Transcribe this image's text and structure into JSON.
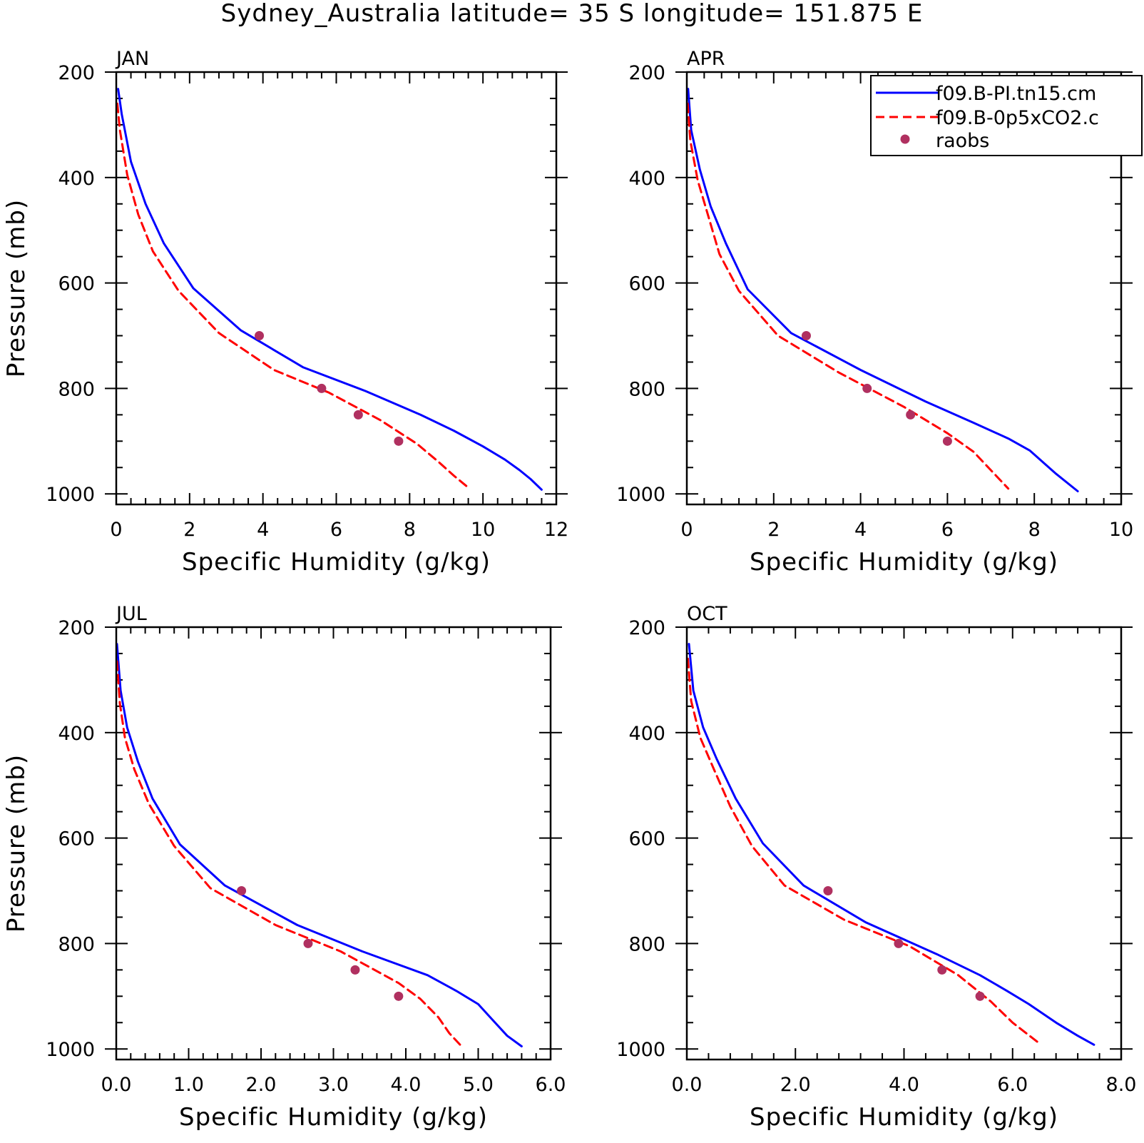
{
  "title": "Sydney_Australia  latitude= 35 S longitude= 151.875 E",
  "legend": {
    "placement": "top-right of APR panel",
    "entries": [
      {
        "label": "f09.B-PI.tn15.cm",
        "style": "solid",
        "color": "#0000ff"
      },
      {
        "label": "f09.B-0p5xCO2.c",
        "style": "dashed",
        "color": "#ff0000"
      },
      {
        "label": "raobs",
        "style": "marker",
        "color": "#b03060"
      }
    ]
  },
  "colors": {
    "model_pi": "#0000ff",
    "model_co2": "#ff0000",
    "raobs": "#b03060"
  },
  "chart_data": [
    {
      "type": "line",
      "panel": "JAN",
      "xlabel": "Specific Humidity (g/kg)",
      "ylabel": "Pressure (mb)",
      "xlim": [
        0,
        12
      ],
      "ylim": [
        200,
        1020
      ],
      "y_reversed": true,
      "xticks": [
        0,
        2,
        4,
        6,
        8,
        10,
        12
      ],
      "xtick_labels": [
        "0",
        "2",
        "4",
        "6",
        "8",
        "10",
        "12"
      ],
      "yticks": [
        200,
        400,
        600,
        800,
        1000
      ],
      "ytick_labels": [
        "200",
        "400",
        "600",
        "800",
        "1000"
      ],
      "series": [
        {
          "name": "f09.B-PI.tn15.cm",
          "style": "solid",
          "x": [
            0.05,
            0.15,
            0.4,
            0.8,
            1.3,
            2.1,
            3.4,
            5.1,
            6.8,
            8.3,
            9.2,
            10.0,
            10.6,
            11.0,
            11.3,
            11.6
          ],
          "y": [
            232,
            280,
            370,
            450,
            525,
            610,
            690,
            760,
            805,
            850,
            880,
            910,
            935,
            955,
            972,
            992
          ]
        },
        {
          "name": "f09.B-0p5xCO2.c",
          "style": "dashed",
          "x": [
            0.03,
            0.1,
            0.3,
            0.6,
            1.0,
            1.7,
            2.8,
            4.3,
            5.8,
            7.2,
            8.2,
            8.8,
            9.2,
            9.6
          ],
          "y": [
            260,
            310,
            395,
            470,
            540,
            615,
            695,
            765,
            808,
            860,
            905,
            940,
            965,
            988
          ]
        },
        {
          "name": "raobs",
          "style": "marker",
          "x": [
            3.9,
            5.6,
            6.6,
            7.7
          ],
          "y": [
            700,
            800,
            850,
            900
          ]
        }
      ]
    },
    {
      "type": "line",
      "panel": "APR",
      "xlabel": "Specific Humidity (g/kg)",
      "ylabel": "",
      "xlim": [
        0,
        10
      ],
      "ylim": [
        200,
        1020
      ],
      "y_reversed": true,
      "xticks": [
        0,
        2,
        4,
        6,
        8,
        10
      ],
      "xtick_labels": [
        "0",
        "2",
        "4",
        "6",
        "8",
        "10"
      ],
      "yticks": [
        200,
        400,
        600,
        800,
        1000
      ],
      "ytick_labels": [
        "200",
        "400",
        "600",
        "800",
        "1000"
      ],
      "series": [
        {
          "name": "f09.B-PI.tn15.cm",
          "style": "solid",
          "x": [
            0.03,
            0.1,
            0.3,
            0.55,
            0.9,
            1.4,
            2.4,
            4.0,
            5.5,
            6.6,
            7.4,
            7.9,
            8.2,
            8.5,
            9.0
          ],
          "y": [
            232,
            310,
            385,
            455,
            525,
            612,
            695,
            765,
            825,
            865,
            895,
            918,
            940,
            962,
            995
          ]
        },
        {
          "name": "f09.B-0p5xCO2.c",
          "style": "dashed",
          "x": [
            0.02,
            0.08,
            0.25,
            0.5,
            0.75,
            1.2,
            2.1,
            3.5,
            5.0,
            6.0,
            6.6,
            7.0,
            7.4
          ],
          "y": [
            260,
            330,
            405,
            475,
            545,
            615,
            700,
            770,
            835,
            885,
            920,
            955,
            990
          ]
        },
        {
          "name": "raobs",
          "style": "marker",
          "x": [
            2.75,
            4.15,
            5.15,
            6.0
          ],
          "y": [
            700,
            800,
            850,
            900
          ]
        }
      ]
    },
    {
      "type": "line",
      "panel": "JUL",
      "xlabel": "Specific Humidity (g/kg)",
      "ylabel": "Pressure (mb)",
      "xlim": [
        0,
        6
      ],
      "ylim": [
        200,
        1020
      ],
      "y_reversed": true,
      "xticks": [
        0,
        1,
        2,
        3,
        4,
        5,
        6
      ],
      "xtick_labels": [
        "0.0",
        "1.0",
        "2.0",
        "3.0",
        "4.0",
        "5.0",
        "6.0"
      ],
      "yticks": [
        200,
        400,
        600,
        800,
        1000
      ],
      "ytick_labels": [
        "200",
        "400",
        "600",
        "800",
        "1000"
      ],
      "series": [
        {
          "name": "f09.B-PI.tn15.cm",
          "style": "solid",
          "x": [
            0.01,
            0.06,
            0.15,
            0.3,
            0.5,
            0.88,
            1.5,
            2.5,
            3.4,
            4.3,
            4.7,
            5.0,
            5.2,
            5.4,
            5.6
          ],
          "y": [
            232,
            320,
            390,
            455,
            525,
            612,
            690,
            765,
            815,
            860,
            890,
            915,
            945,
            975,
            995
          ]
        },
        {
          "name": "f09.B-0p5xCO2.c",
          "style": "dashed",
          "x": [
            0.01,
            0.05,
            0.12,
            0.25,
            0.45,
            0.8,
            1.3,
            2.2,
            3.1,
            3.9,
            4.2,
            4.45,
            4.6,
            4.75
          ],
          "y": [
            265,
            345,
            410,
            470,
            535,
            615,
            695,
            765,
            815,
            875,
            905,
            940,
            970,
            992
          ]
        },
        {
          "name": "raobs",
          "style": "marker",
          "x": [
            1.73,
            2.65,
            3.3,
            3.9
          ],
          "y": [
            700,
            800,
            850,
            900
          ]
        }
      ]
    },
    {
      "type": "line",
      "panel": "OCT",
      "xlabel": "Specific Humidity (g/kg)",
      "ylabel": "",
      "xlim": [
        0,
        8
      ],
      "ylim": [
        200,
        1020
      ],
      "y_reversed": true,
      "xticks": [
        0,
        2,
        4,
        6,
        8
      ],
      "xtick_labels": [
        "0.0",
        "2.0",
        "4.0",
        "6.0",
        "8.0"
      ],
      "yticks": [
        200,
        400,
        600,
        800,
        1000
      ],
      "ytick_labels": [
        "200",
        "400",
        "600",
        "800",
        "1000"
      ],
      "series": [
        {
          "name": "f09.B-PI.tn15.cm",
          "style": "solid",
          "x": [
            0.04,
            0.12,
            0.3,
            0.55,
            0.9,
            1.4,
            2.15,
            3.3,
            4.6,
            5.4,
            5.9,
            6.3,
            6.8,
            7.2,
            7.5
          ],
          "y": [
            232,
            320,
            390,
            450,
            525,
            610,
            690,
            760,
            820,
            860,
            890,
            915,
            950,
            975,
            992
          ]
        },
        {
          "name": "f09.B-0p5xCO2.c",
          "style": "dashed",
          "x": [
            0.02,
            0.08,
            0.25,
            0.5,
            0.8,
            1.2,
            1.8,
            2.9,
            4.1,
            5.0,
            5.6,
            6.0,
            6.5
          ],
          "y": [
            260,
            340,
            410,
            470,
            540,
            615,
            690,
            755,
            805,
            860,
            910,
            950,
            990
          ]
        },
        {
          "name": "raobs",
          "style": "marker",
          "x": [
            2.6,
            3.9,
            4.7,
            5.4
          ],
          "y": [
            700,
            800,
            850,
            900
          ]
        }
      ]
    }
  ]
}
